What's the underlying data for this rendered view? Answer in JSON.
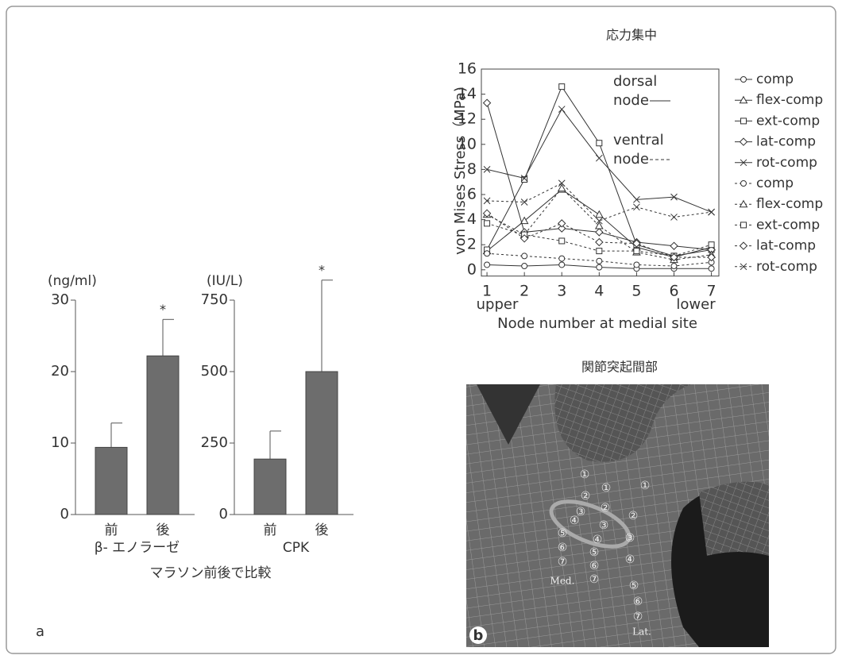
{
  "panel_labels": {
    "a": "a",
    "b": "b"
  },
  "caption": "マラソン前後で比較",
  "chart_data": [
    {
      "type": "bar",
      "unit": "(ng/ml)",
      "xlabel": "β- エノラーゼ",
      "categories": [
        "前",
        "後"
      ],
      "values": [
        9.4,
        22.2
      ],
      "errors": [
        3.4,
        5.1
      ],
      "color": "#6d6d6d",
      "ylim": [
        0,
        30
      ],
      "yticks": [
        0,
        10,
        20,
        30
      ],
      "annotations": [
        {
          "text": "*",
          "category": "後"
        }
      ]
    },
    {
      "type": "bar",
      "unit": "(IU/L)",
      "xlabel": "CPK",
      "categories": [
        "前",
        "後"
      ],
      "values": [
        194,
        500
      ],
      "errors": [
        98,
        320
      ],
      "color": "#6d6d6d",
      "ylim": [
        0,
        750
      ],
      "yticks": [
        0,
        250,
        500,
        750
      ],
      "annotations": [
        {
          "text": "*",
          "category": "後"
        }
      ]
    },
    {
      "type": "line",
      "title": "応力集中",
      "ylabel": "von Mises Stress（MPa)",
      "xlabel": "Node number at medial site",
      "x_end_labels": [
        "upper",
        "lower"
      ],
      "x": [
        1,
        2,
        3,
        4,
        5,
        6,
        7
      ],
      "xlim": [
        0.85,
        7.2
      ],
      "xticks": [
        1,
        2,
        3,
        4,
        5,
        6,
        7
      ],
      "ylim": [
        -0.5,
        16
      ],
      "yticks": [
        0,
        2,
        4,
        6,
        8,
        10,
        12,
        14,
        16
      ],
      "annotations": [
        {
          "lines": [
            "dorsal",
            "node"
          ],
          "dash": false
        },
        {
          "lines": [
            "ventral",
            "node"
          ],
          "dash": true
        }
      ],
      "series": [
        {
          "name": "comp",
          "marker": "circle",
          "dash": false,
          "color": "#333",
          "values": [
            0.4,
            0.3,
            0.4,
            0.2,
            0.1,
            0.1,
            0.1
          ]
        },
        {
          "name": "flex-comp",
          "marker": "triangle",
          "dash": false,
          "color": "#333",
          "values": [
            1.5,
            3.9,
            6.4,
            4.4,
            1.8,
            1.0,
            1.8
          ]
        },
        {
          "name": "ext-comp",
          "marker": "square",
          "dash": false,
          "color": "#333",
          "values": [
            1.6,
            7.2,
            14.6,
            10.1,
            2.0,
            1.1,
            1.6
          ]
        },
        {
          "name": "lat-comp",
          "marker": "diamond",
          "dash": false,
          "color": "#333",
          "values": [
            13.3,
            3.0,
            3.3,
            3.0,
            2.2,
            1.9,
            1.6
          ]
        },
        {
          "name": "rot-comp",
          "marker": "x",
          "dash": false,
          "color": "#333",
          "values": [
            8.0,
            7.3,
            12.8,
            8.9,
            5.6,
            5.8,
            4.6
          ]
        },
        {
          "name": "comp",
          "marker": "circle",
          "dash": true,
          "color": "#333",
          "values": [
            1.3,
            1.1,
            0.9,
            0.7,
            0.4,
            0.3,
            0.6
          ]
        },
        {
          "name": "flex-comp",
          "marker": "triangle",
          "dash": true,
          "color": "#333",
          "values": [
            4.4,
            2.8,
            6.5,
            3.5,
            1.4,
            0.8,
            1.2
          ]
        },
        {
          "name": "ext-comp",
          "marker": "square",
          "dash": true,
          "color": "#333",
          "values": [
            3.7,
            2.8,
            2.3,
            1.5,
            1.5,
            1.1,
            2.0
          ]
        },
        {
          "name": "lat-comp",
          "marker": "diamond",
          "dash": true,
          "color": "#333",
          "values": [
            4.5,
            2.5,
            3.7,
            2.2,
            2.1,
            1.0,
            1.0
          ]
        },
        {
          "name": "rot-comp",
          "marker": "x",
          "dash": true,
          "color": "#333",
          "values": [
            5.5,
            5.4,
            6.9,
            3.9,
            5.0,
            4.2,
            4.6
          ]
        }
      ]
    }
  ],
  "figure_b": {
    "title": "関節突起間部",
    "columns": [
      {
        "label": "Med.",
        "nodes": [
          "①",
          "②",
          "③",
          "④",
          "⑤",
          "⑥",
          "⑦"
        ]
      },
      {
        "nodes": [
          "①",
          "②",
          "③",
          "④",
          "⑤",
          "⑥",
          "⑦"
        ]
      },
      {
        "label": "Lat.",
        "nodes": [
          "①",
          "②",
          "③",
          "④",
          "⑤",
          "⑥",
          "⑦"
        ]
      }
    ]
  }
}
